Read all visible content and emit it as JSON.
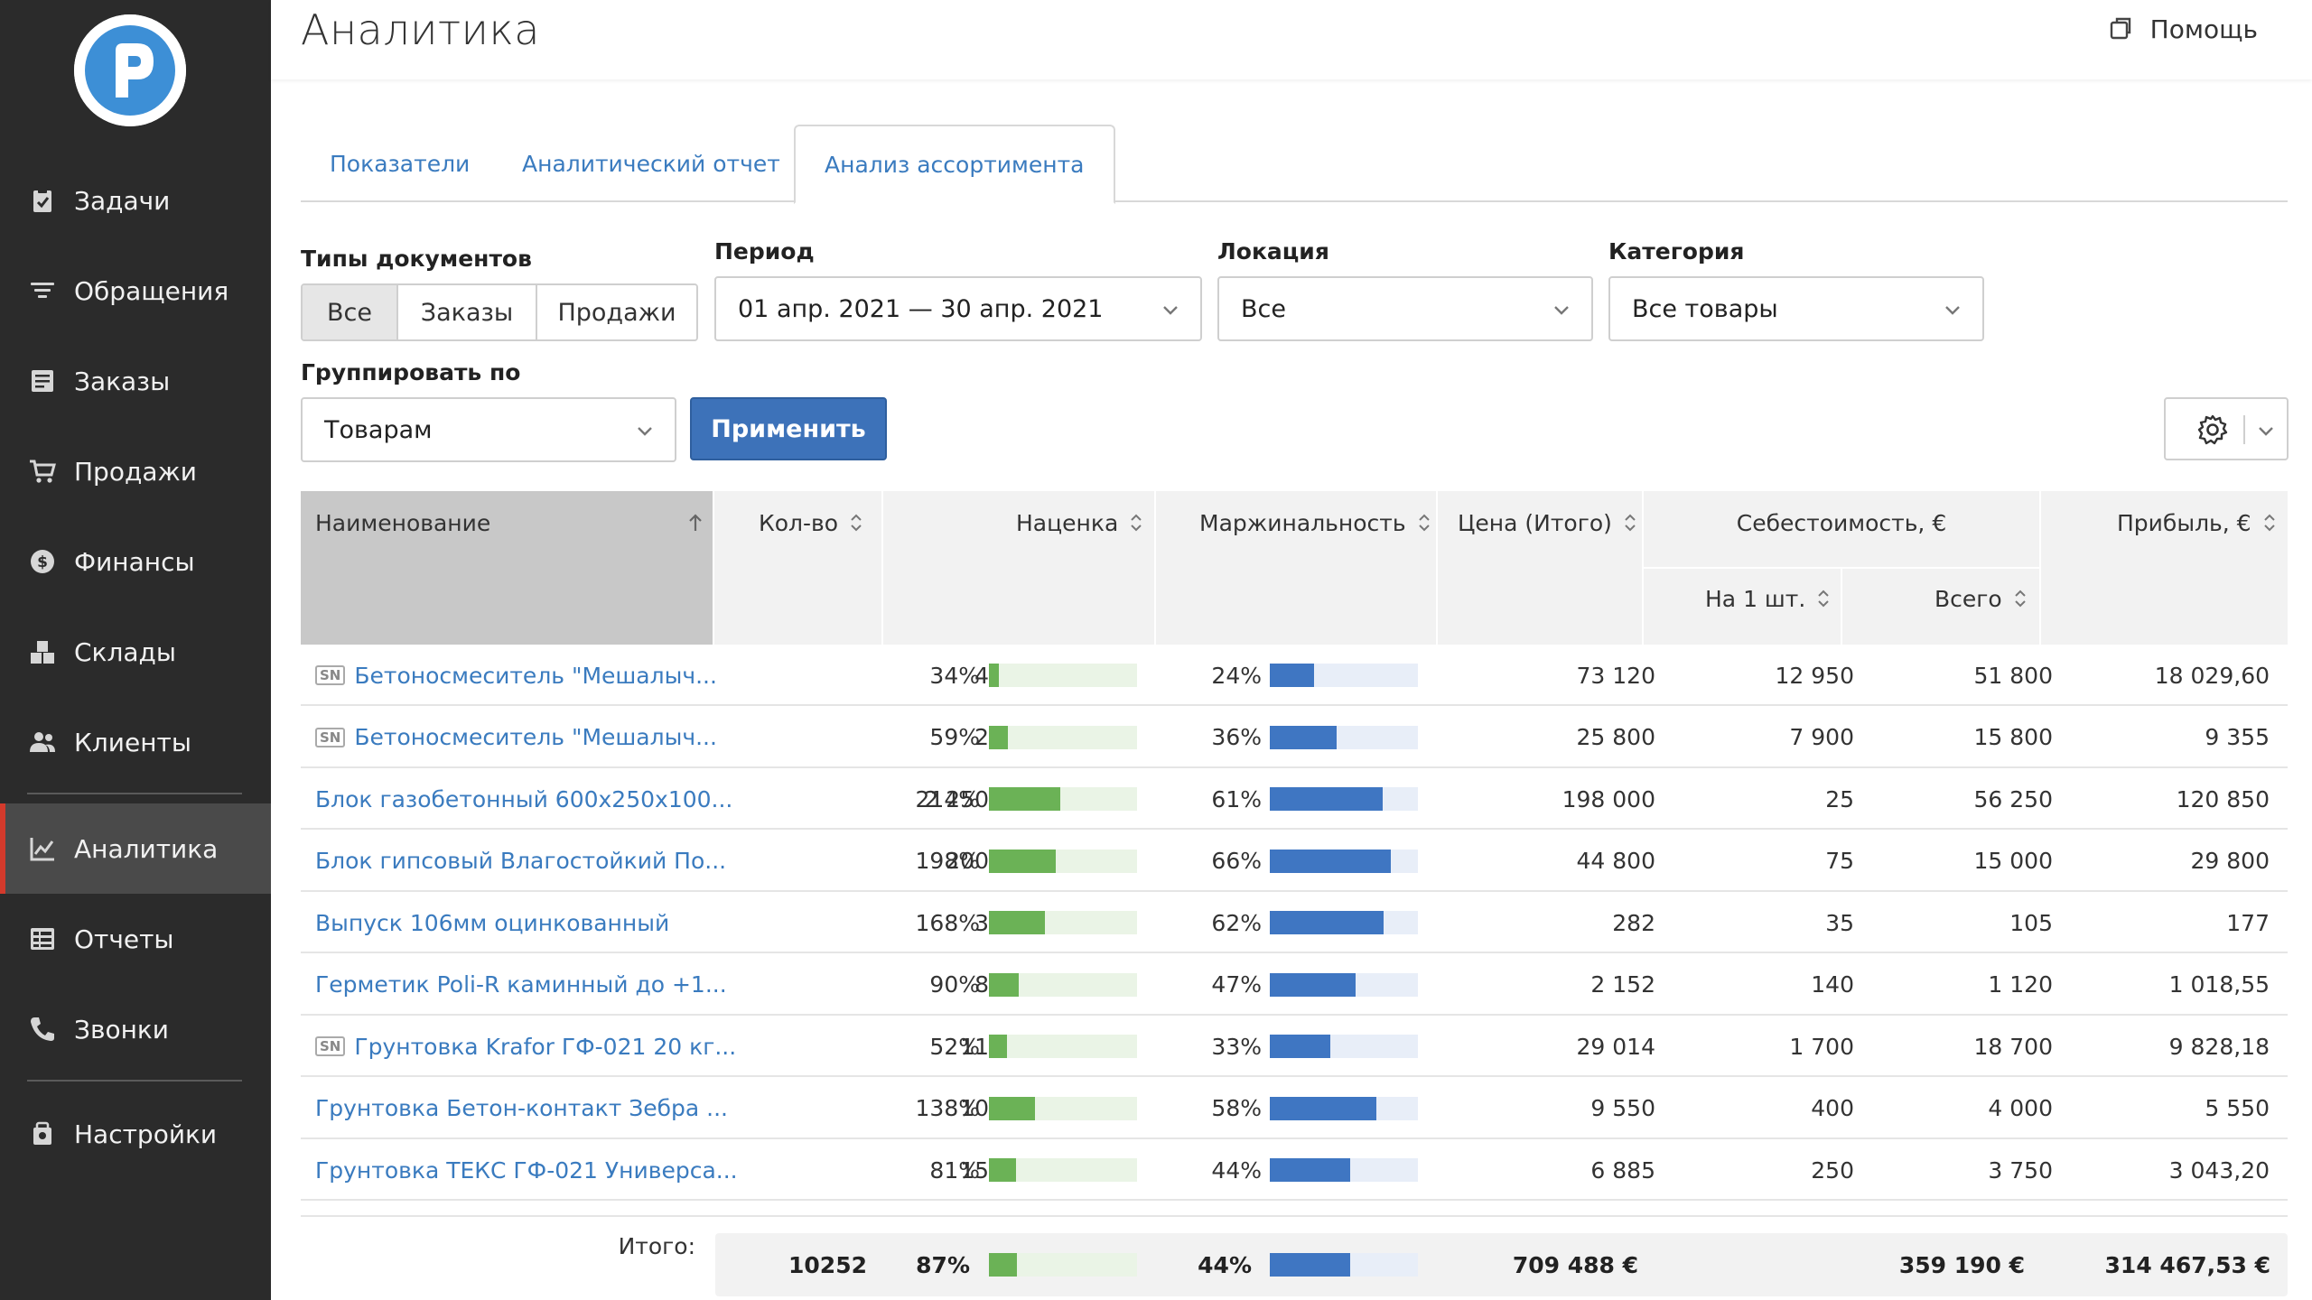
{
  "sidebar": {
    "items": [
      {
        "label": "Задачи",
        "icon": "clipboard-check-icon"
      },
      {
        "label": "Обращения",
        "icon": "filter-lines-icon"
      },
      {
        "label": "Заказы",
        "icon": "order-list-icon"
      },
      {
        "label": "Продажи",
        "icon": "cart-icon"
      },
      {
        "label": "Финансы",
        "icon": "dollar-circle-icon"
      },
      {
        "label": "Склады",
        "icon": "boxes-icon"
      },
      {
        "label": "Клиенты",
        "icon": "users-icon"
      },
      {
        "label": "Аналитика",
        "icon": "chart-line-icon",
        "active": true
      },
      {
        "label": "Отчеты",
        "icon": "report-grid-icon"
      },
      {
        "label": "Звонки",
        "icon": "phone-icon"
      },
      {
        "label": "Настройки",
        "icon": "settings-icon"
      }
    ]
  },
  "header": {
    "title": "Аналитика",
    "help_label": "Помощь"
  },
  "tabs": [
    "Показатели",
    "Аналитический отчет",
    "Анализ ассортимента"
  ],
  "filters": {
    "doc_types_label": "Типы документов",
    "doc_types": [
      "Все",
      "Заказы",
      "Продажи"
    ],
    "period_label": "Период",
    "period_value": "01 апр. 2021 — 30 апр. 2021",
    "location_label": "Локация",
    "location_value": "Все",
    "category_label": "Категория",
    "category_value": "Все товары",
    "group_label": "Группировать по",
    "group_value": "Товарам",
    "apply_label": "Применить"
  },
  "table": {
    "headers": {
      "name": "Наименование",
      "qty": "Кол-во",
      "markup": "Наценка",
      "margin": "Маржинальность",
      "price": "Цена (Итого)",
      "cost": "Себестоимость, €",
      "cost_unit": "На 1 шт.",
      "cost_total": "Всего",
      "profit": "Прибыль, €"
    },
    "rows": [
      {
        "sn": true,
        "name": "Бетоносмеситель \"Мешалыч...",
        "qty": "4",
        "markup": "34%",
        "markup_val": 0.07,
        "margin": "24%",
        "margin_val": 0.3,
        "price": "73 120",
        "cost_unit": "12 950",
        "cost_total": "51 800",
        "profit": "18 029,60"
      },
      {
        "sn": true,
        "name": "Бетоносмеситель \"Мешалыч...",
        "qty": "2",
        "markup": "59%",
        "markup_val": 0.13,
        "margin": "36%",
        "margin_val": 0.45,
        "price": "25 800",
        "cost_unit": "7 900",
        "cost_total": "15 800",
        "profit": "9 355"
      },
      {
        "sn": false,
        "name": "Блок газобетонный 600х250х100...",
        "qty": "2 250",
        "markup": "214%",
        "markup_val": 0.48,
        "margin": "61%",
        "margin_val": 0.76,
        "price": "198 000",
        "cost_unit": "25",
        "cost_total": "56 250",
        "profit": "120 850"
      },
      {
        "sn": false,
        "name": "Блок гипсовый Влагостойкий По...",
        "qty": "200",
        "markup": "198%",
        "markup_val": 0.45,
        "margin": "66%",
        "margin_val": 0.82,
        "price": "44 800",
        "cost_unit": "75",
        "cost_total": "15 000",
        "profit": "29 800"
      },
      {
        "sn": false,
        "name": "Выпуск 106мм оцинкованный",
        "qty": "3",
        "markup": "168%",
        "markup_val": 0.38,
        "margin": "62%",
        "margin_val": 0.77,
        "price": "282",
        "cost_unit": "35",
        "cost_total": "105",
        "profit": "177"
      },
      {
        "sn": false,
        "name": "Герметик Poli-R каминный до +1...",
        "qty": "8",
        "markup": "90%",
        "markup_val": 0.2,
        "margin": "47%",
        "margin_val": 0.58,
        "price": "2 152",
        "cost_unit": "140",
        "cost_total": "1 120",
        "profit": "1 018,55"
      },
      {
        "sn": true,
        "name": "Грунтовка Krafor ГФ-021 20 кг...",
        "qty": "11",
        "markup": "52%",
        "markup_val": 0.12,
        "margin": "33%",
        "margin_val": 0.41,
        "price": "29 014",
        "cost_unit": "1 700",
        "cost_total": "18 700",
        "profit": "9 828,18"
      },
      {
        "sn": false,
        "name": "Грунтовка Бетон-контакт Зебра ...",
        "qty": "10",
        "markup": "138%",
        "markup_val": 0.31,
        "margin": "58%",
        "margin_val": 0.72,
        "price": "9 550",
        "cost_unit": "400",
        "cost_total": "4 000",
        "profit": "5 550"
      },
      {
        "sn": false,
        "name": "Грунтовка ТЕКС ГФ-021 Универса...",
        "qty": "15",
        "markup": "81%",
        "markup_val": 0.18,
        "margin": "44%",
        "margin_val": 0.54,
        "price": "6 885",
        "cost_unit": "250",
        "cost_total": "3 750",
        "profit": "3 043,20"
      }
    ],
    "totals": {
      "label": "Итого:",
      "qty": "10252",
      "markup": "87%",
      "markup_val": 0.19,
      "margin": "44%",
      "margin_val": 0.54,
      "price": "709 488 €",
      "cost_total": "359 190 €",
      "profit": "314 467,53 €"
    }
  },
  "colors": {
    "sidebar_bg": "#2b2b2b",
    "active_accent": "#d33a2c",
    "link": "#3a7bbf",
    "markup_bar": "#6bb256",
    "markup_track": "#eaf4e6",
    "margin_bar": "#3f76c2",
    "margin_track": "#e8eef8",
    "apply_button": "#3d72b9"
  }
}
